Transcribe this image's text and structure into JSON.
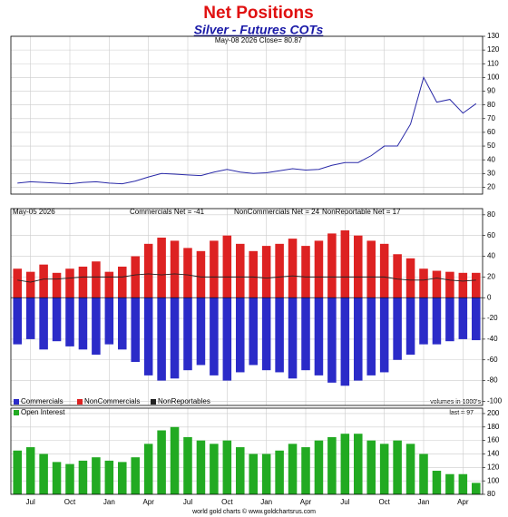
{
  "chart_data": [
    {
      "type": "line",
      "title": "Net Positions",
      "subtitle": "Silver - Futures COTs",
      "annotation": "May-08  2026   Close= 80.87",
      "color": "#2a2aa8",
      "grid": true,
      "ylim": [
        15,
        130
      ],
      "yticks": [
        20,
        30,
        40,
        50,
        60,
        70,
        80,
        90,
        100,
        110,
        120,
        130
      ],
      "values": [
        23,
        24,
        23.5,
        23,
        22.5,
        23.5,
        24,
        23,
        22.5,
        24.5,
        27.5,
        30,
        29.5,
        29,
        28.5,
        31,
        33,
        31,
        30,
        30.5,
        32,
        33.5,
        32.5,
        33,
        36,
        38,
        38,
        43,
        50,
        50,
        66,
        100,
        82,
        84,
        74,
        80.87
      ]
    },
    {
      "type": "bar",
      "annotation": "May-05  2026",
      "annotations": [
        "Commercials Net = -41",
        "NonCommercials Net = 24",
        "NonReportable Net = 17"
      ],
      "note": "volumes in 1000's",
      "grid": true,
      "ylim": [
        -104,
        86
      ],
      "yticks": [
        -100,
        -80,
        -60,
        -40,
        -20,
        0,
        20,
        40,
        60,
        80
      ],
      "series": [
        {
          "name": "Commercials",
          "color": "#2b2bc8",
          "values": [
            -45,
            -40,
            -50,
            -42,
            -47,
            -50,
            -55,
            -45,
            -50,
            -62,
            -75,
            -80,
            -78,
            -70,
            -65,
            -75,
            -80,
            -72,
            -65,
            -70,
            -72,
            -78,
            -70,
            -75,
            -82,
            -85,
            -80,
            -75,
            -72,
            -60,
            -55,
            -45,
            -45,
            -42,
            -40,
            -41
          ]
        },
        {
          "name": "NonCommercials",
          "color": "#dd2222",
          "values": [
            28,
            25,
            32,
            24,
            28,
            30,
            35,
            25,
            30,
            40,
            52,
            58,
            55,
            48,
            45,
            55,
            60,
            52,
            45,
            50,
            52,
            57,
            50,
            55,
            62,
            65,
            60,
            55,
            52,
            42,
            38,
            28,
            26,
            25,
            24,
            24
          ]
        },
        {
          "name": "NonReportables",
          "color": "#222222",
          "values": [
            17,
            15,
            18,
            18,
            19,
            20,
            20,
            20,
            20,
            22,
            23,
            22,
            23,
            22,
            20,
            20,
            20,
            20,
            20,
            19,
            20,
            21,
            20,
            20,
            20,
            20,
            20,
            20,
            20,
            18,
            17,
            17,
            19,
            17,
            16,
            17
          ]
        }
      ]
    },
    {
      "type": "bar",
      "annotation": "last = 97",
      "footer": "world gold charts © www.goldchartsrus.com",
      "grid": true,
      "ylim": [
        80,
        208
      ],
      "yticks": [
        80,
        100,
        120,
        140,
        160,
        180,
        200
      ],
      "categories": [
        null,
        "Jul",
        null,
        null,
        "Oct",
        null,
        null,
        "Jan",
        null,
        null,
        "Apr",
        null,
        null,
        "Jul",
        null,
        null,
        "Oct",
        null,
        null,
        "Jan",
        null,
        null,
        "Apr",
        null,
        null,
        "Jul",
        null,
        null,
        "Oct",
        null,
        null,
        "Jan",
        null,
        null,
        "Apr",
        null
      ],
      "series": [
        {
          "name": "Open Interest",
          "color": "#22aa22",
          "values": [
            145,
            150,
            140,
            128,
            125,
            130,
            135,
            130,
            128,
            135,
            155,
            175,
            180,
            165,
            160,
            155,
            160,
            150,
            140,
            140,
            145,
            155,
            150,
            160,
            165,
            170,
            170,
            160,
            155,
            160,
            155,
            140,
            115,
            110,
            110,
            97
          ]
        }
      ]
    }
  ]
}
